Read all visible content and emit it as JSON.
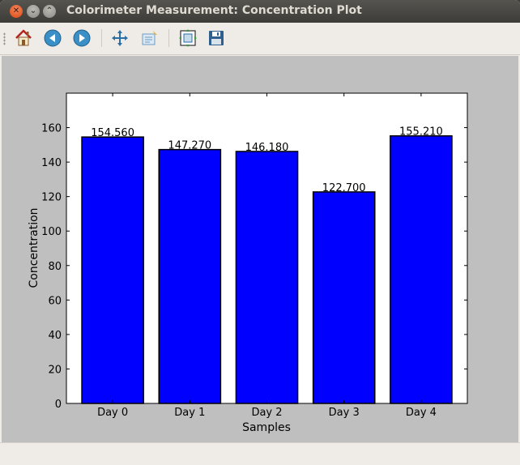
{
  "window": {
    "title": "Colorimeter Measurement: Concentration Plot"
  },
  "toolbar": {
    "buttons": [
      {
        "name": "home-button",
        "icon": "home-icon"
      },
      {
        "name": "back-button",
        "icon": "arrow-left-icon"
      },
      {
        "name": "forward-button",
        "icon": "arrow-right-icon"
      },
      {
        "name": "pan-button",
        "icon": "move-icon"
      },
      {
        "name": "zoom-button",
        "icon": "zoom-rect-icon"
      },
      {
        "name": "subplots-button",
        "icon": "configure-subplots-icon"
      },
      {
        "name": "save-button",
        "icon": "floppy-disk-icon"
      }
    ]
  },
  "chart_data": {
    "type": "bar",
    "categories": [
      "Day 0",
      "Day 1",
      "Day 2",
      "Day 3",
      "Day 4"
    ],
    "values": [
      154.56,
      147.27,
      146.18,
      122.7,
      155.21
    ],
    "value_labels": [
      "154.560",
      "147.270",
      "146.180",
      "122.700",
      "155.210"
    ],
    "xlabel": "Samples",
    "ylabel": "Concentration",
    "ylim": [
      0,
      180
    ],
    "yticks": [
      0,
      20,
      40,
      60,
      80,
      100,
      120,
      140,
      160
    ],
    "bar_color": "#0000ff",
    "grid": false
  },
  "colors": {
    "figure_background": "#bfbfbf",
    "axes_background": "#ffffff"
  }
}
